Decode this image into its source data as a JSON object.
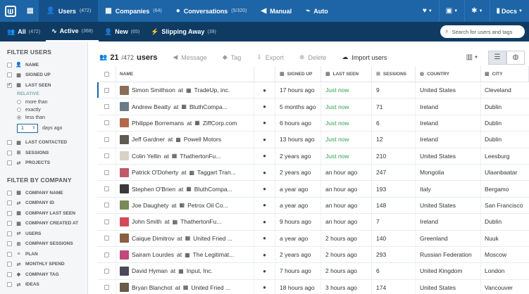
{
  "topnav": {
    "items": [
      {
        "label": "Users",
        "count": "(472)",
        "icon": "person-icon",
        "active": true
      },
      {
        "label": "Companies",
        "count": "(64)",
        "icon": "building-icon",
        "active": false
      },
      {
        "label": "Conversations",
        "count": "(5/320)",
        "icon": "chat-icon",
        "active": false
      },
      {
        "label": "Manual",
        "count": "",
        "icon": "megaphone-icon",
        "active": false
      },
      {
        "label": "Auto",
        "count": "",
        "icon": "automation-icon",
        "active": false
      }
    ],
    "docs_label": "Docs"
  },
  "subnav": {
    "items": [
      {
        "label": "All",
        "count": "(472)",
        "icon": "users-icon",
        "active": false
      },
      {
        "label": "Active",
        "count": "(368)",
        "icon": "activity-icon",
        "active": true
      },
      {
        "label": "New",
        "count": "(65)",
        "icon": "new-user-icon",
        "active": false
      },
      {
        "label": "Slipping Away",
        "count": "(39)",
        "icon": "lightning-icon",
        "active": false
      }
    ],
    "search_placeholder": "Search for users and tags"
  },
  "sidebar": {
    "filter_users_title": "FILTER USERS",
    "user_filters": [
      {
        "label": "NAME",
        "icon": "person-icon",
        "checked": false
      },
      {
        "label": "SIGNED UP",
        "icon": "calendar-icon",
        "checked": false
      },
      {
        "label": "LAST SEEN",
        "icon": "calendar-icon",
        "checked": true
      }
    ],
    "relative_label": "RELATIVE",
    "radio_options": [
      {
        "label": "more than",
        "selected": false
      },
      {
        "label": "exactly",
        "selected": false
      },
      {
        "label": "less than",
        "selected": true
      }
    ],
    "days_value": "1",
    "days_label": "days ago",
    "user_filters_2": [
      {
        "label": "LAST CONTACTED",
        "icon": "calendar-icon",
        "checked": false
      },
      {
        "label": "SESSIONS",
        "icon": "sessions-icon",
        "checked": false
      },
      {
        "label": "PROJECTS",
        "icon": "swap-icon",
        "checked": false
      }
    ],
    "filter_company_title": "FILTER BY COMPANY",
    "company_filters": [
      {
        "label": "COMPANY NAME",
        "icon": "building-icon"
      },
      {
        "label": "COMPANY ID",
        "icon": "swap-icon"
      },
      {
        "label": "COMPANY LAST SEEN",
        "icon": "calendar-icon"
      },
      {
        "label": "COMPANY CREATED AT",
        "icon": "calendar-icon"
      },
      {
        "label": "USERS",
        "icon": "swap-icon"
      },
      {
        "label": "COMPANY SESSIONS",
        "icon": "sessions-icon"
      },
      {
        "label": "PLAN",
        "icon": "text-icon"
      },
      {
        "label": "MONTHLY SPEND",
        "icon": "swap-icon"
      },
      {
        "label": "COMPANY TAG",
        "icon": "tag-icon"
      },
      {
        "label": "IDEAS",
        "icon": "swap-icon"
      }
    ]
  },
  "toolbar": {
    "count": "21",
    "total": "/472",
    "users_label": "users",
    "actions": [
      {
        "label": "Message",
        "icon": "megaphone-icon",
        "enabled": false
      },
      {
        "label": "Tag",
        "icon": "tag-icon",
        "enabled": false
      },
      {
        "label": "Export",
        "icon": "export-icon",
        "enabled": false
      },
      {
        "label": "Delete",
        "icon": "delete-icon",
        "enabled": false
      },
      {
        "label": "Import users",
        "icon": "upload-icon",
        "enabled": true
      }
    ]
  },
  "table": {
    "headers": {
      "name": "NAME",
      "signed_up": "SIGNED UP",
      "last_seen": "LAST SEEN",
      "sessions": "SESSIONS",
      "country": "COUNTRY",
      "city": "CITY"
    },
    "at_label": "at",
    "rows": [
      {
        "name": "Simon Smithson",
        "company": "TradeUp, inc.",
        "signed_up": "17 hours ago",
        "last_seen": "Just now",
        "sessions": "9",
        "country": "United States",
        "city": "Cleveland",
        "avatar": "#8a6d5a"
      },
      {
        "name": "Andrew Beatty",
        "company": "BluthCompa...",
        "signed_up": "5 months ago",
        "last_seen": "Just now",
        "sessions": "71",
        "country": "Ireland",
        "city": "Dublin",
        "avatar": "#6b7b86"
      },
      {
        "name": "Philippe Borremans",
        "company": "ZiffCorp.com",
        "signed_up": "6 hours ago",
        "last_seen": "Just now",
        "sessions": "6",
        "country": "Ireland",
        "city": "Dublin",
        "avatar": "#b06a4a"
      },
      {
        "name": "Jeff Gardner",
        "company": "Powell Motors",
        "signed_up": "13 hours ago",
        "last_seen": "Just now",
        "sessions": "12",
        "country": "Ireland",
        "city": "Dublin",
        "avatar": "#5e5a52"
      },
      {
        "name": "Colin Yellin",
        "company": "ThathertonFu...",
        "signed_up": "2 years ago",
        "last_seen": "Just now",
        "sessions": "210",
        "country": "United States",
        "city": "Leesburg",
        "avatar": "#d8d2c4"
      },
      {
        "name": "Patrick O'Doherty",
        "company": "Taggart Tran...",
        "signed_up": "2 years ago",
        "last_seen": "an hour ago",
        "sessions": "247",
        "country": "Mongolia",
        "city": "Ulaanbaatar",
        "avatar": "#c05a6a"
      },
      {
        "name": "Stephen O'Brien",
        "company": "BluthCompa...",
        "signed_up": "a year ago",
        "last_seen": "an hour ago",
        "sessions": "193",
        "country": "Italy",
        "city": "Bergamo",
        "avatar": "#3a3a3a"
      },
      {
        "name": "Joe Daughety",
        "company": "Petrox Oil Co...",
        "signed_up": "a year ago",
        "last_seen": "an hour ago",
        "sessions": "148",
        "country": "United States",
        "city": "San Francisco",
        "avatar": "#7a8a5a"
      },
      {
        "name": "John Smith",
        "company": "ThathertonFu...",
        "signed_up": "9 hours ago",
        "last_seen": "an hour ago",
        "sessions": "7",
        "country": "Ireland",
        "city": "Dublin",
        "avatar": "#d44a5a"
      },
      {
        "name": "Caique Dimitrov",
        "company": "United Fried ...",
        "signed_up": "a year ago",
        "last_seen": "2 hours ago",
        "sessions": "140",
        "country": "Greenland",
        "city": "Nuuk",
        "avatar": "#8a6040"
      },
      {
        "name": "Sairam Lourdes",
        "company": "The Legitimat...",
        "signed_up": "2 years ago",
        "last_seen": "2 hours ago",
        "sessions": "293",
        "country": "Russian Federation",
        "city": "Moscow",
        "avatar": "#c04a7a"
      },
      {
        "name": "David Hyman",
        "company": "Input, Inc.",
        "signed_up": "7 hours ago",
        "last_seen": "2 hours ago",
        "sessions": "6",
        "country": "United Kingdom",
        "city": "London",
        "avatar": "#4a4a5a"
      },
      {
        "name": "Bryan Blanchot",
        "company": "United Fried ...",
        "signed_up": "18 hours ago",
        "last_seen": "3 hours ago",
        "sessions": "174",
        "country": "United States",
        "city": "Vancouver",
        "avatar": "#6a5a4a"
      }
    ]
  }
}
